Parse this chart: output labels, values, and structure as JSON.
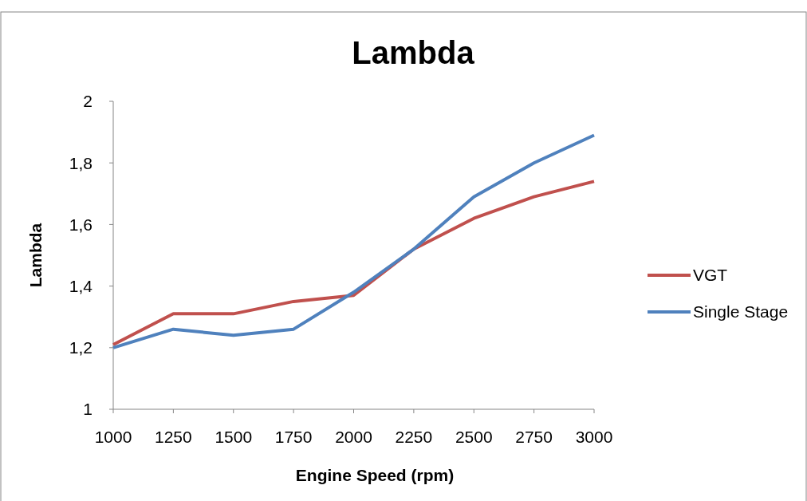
{
  "chart_data": {
    "type": "line",
    "title": "Lambda",
    "xlabel": "Engine Speed (rpm)",
    "ylabel": "Lambda",
    "x": [
      1000,
      1250,
      1500,
      1750,
      2000,
      2250,
      2500,
      2750,
      3000
    ],
    "xlim": [
      1000,
      3000
    ],
    "xticks": [
      1000,
      1250,
      1500,
      1750,
      2000,
      2250,
      2500,
      2750,
      3000
    ],
    "ylim": [
      1,
      2
    ],
    "yticks": [
      1,
      {
        "value": 1.2,
        "label": "1,2"
      },
      {
        "value": 1.4,
        "label": "1,4"
      },
      {
        "value": 1.6,
        "label": "1,6"
      },
      {
        "value": 1.8,
        "label": "1,8"
      },
      2
    ],
    "series": [
      {
        "name": "VGT",
        "color": "#c0504d",
        "values": [
          1.21,
          1.31,
          1.31,
          1.35,
          1.37,
          1.52,
          1.62,
          1.69,
          1.74
        ]
      },
      {
        "name": "Single Stage",
        "color": "#4f81bd",
        "values": [
          1.2,
          1.26,
          1.24,
          1.26,
          1.38,
          1.52,
          1.69,
          1.8,
          1.89
        ]
      }
    ],
    "grid": false,
    "legend": "right",
    "marker": "none",
    "line_style": "solid"
  }
}
